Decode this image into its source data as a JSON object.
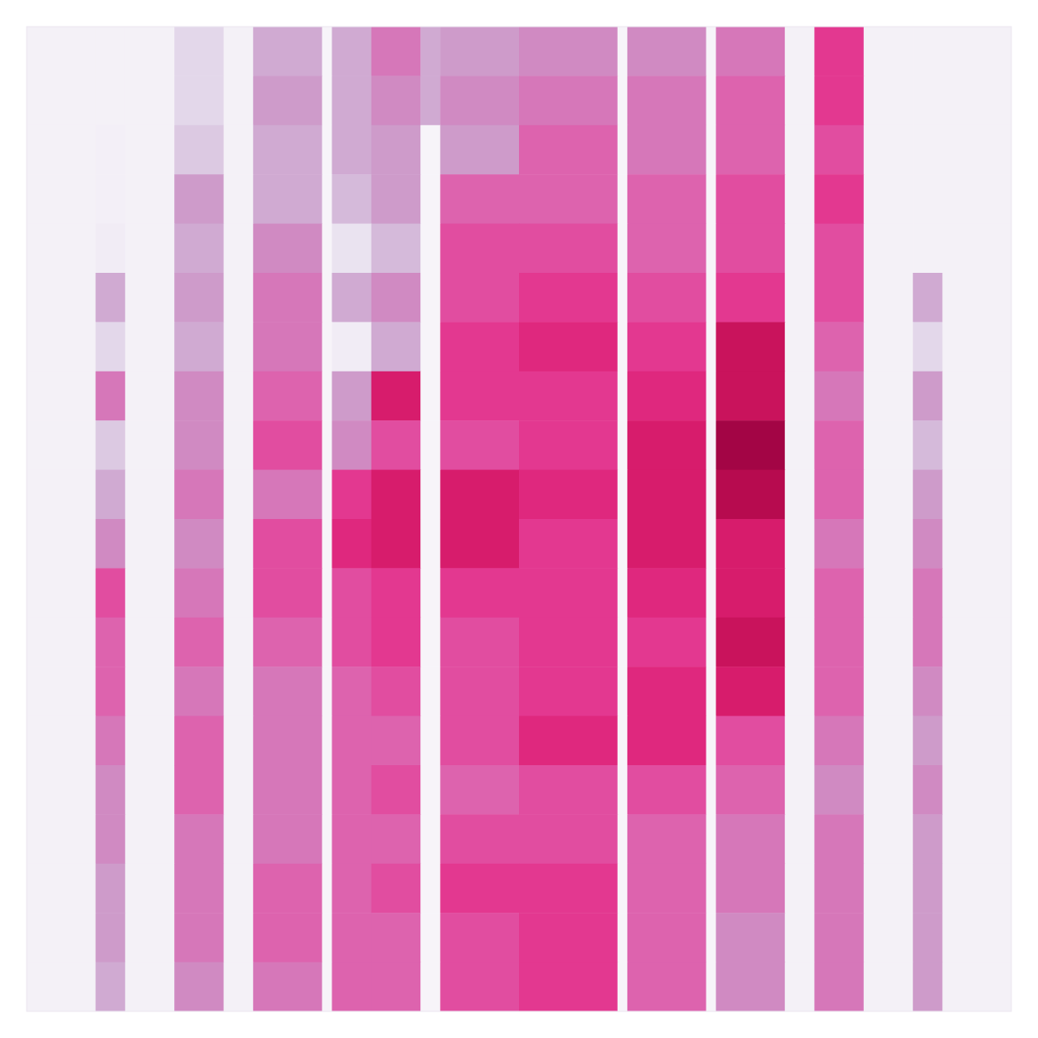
{
  "chart_data": {
    "type": "heatmap",
    "color": "PuRd",
    "tick_labels": false,
    "xlim": [
      0,
      100
    ],
    "ylim": [
      0,
      100
    ],
    "color_range": [
      0,
      1
    ],
    "x_edges": [
      0,
      7,
      10,
      15,
      20,
      23,
      30,
      31,
      35,
      40,
      42,
      50,
      60,
      61,
      69,
      70,
      77,
      80,
      85,
      90,
      93,
      100
    ],
    "y_edges": [
      0,
      5,
      10,
      15,
      20,
      25,
      30,
      35,
      40,
      45,
      50,
      55,
      60,
      65,
      70,
      75,
      80,
      85,
      90,
      95,
      100
    ],
    "cells": [
      [
        0.02,
        0.02,
        0.02,
        0.15,
        0.02,
        0.3,
        0,
        0.3,
        0.45,
        0.3,
        0.35,
        0.4,
        0,
        0.4,
        0,
        0.45,
        0.02,
        0.6,
        0.02,
        0.02,
        0.02
      ],
      [
        0.02,
        0.02,
        0.02,
        0.15,
        0.02,
        0.35,
        0,
        0.3,
        0.4,
        0.3,
        0.4,
        0.45,
        0,
        0.45,
        0,
        0.5,
        0.02,
        0.6,
        0.02,
        0.02,
        0.02
      ],
      [
        0.02,
        0.03,
        0.02,
        0.2,
        0.02,
        0.3,
        0,
        0.3,
        0.35,
        0,
        0.35,
        0.5,
        0,
        0.45,
        0,
        0.5,
        0.02,
        0.55,
        0.02,
        0.02,
        0.02
      ],
      [
        0.02,
        0.03,
        0.02,
        0.35,
        0.02,
        0.3,
        0,
        0.25,
        0.35,
        0,
        0.5,
        0.5,
        0,
        0.5,
        0,
        0.55,
        0.02,
        0.6,
        0.02,
        0.02,
        0.02
      ],
      [
        0.02,
        0.05,
        0.02,
        0.3,
        0.02,
        0.4,
        0,
        0.1,
        0.25,
        0,
        0.55,
        0.55,
        0,
        0.5,
        0,
        0.55,
        0.02,
        0.55,
        0.02,
        0.02,
        0.02
      ],
      [
        0.02,
        0.3,
        0.02,
        0.35,
        0.02,
        0.45,
        0,
        0.3,
        0.4,
        0,
        0.55,
        0.6,
        0,
        0.55,
        0,
        0.6,
        0.02,
        0.55,
        0.02,
        0.3,
        0.02
      ],
      [
        0.02,
        0.15,
        0.02,
        0.3,
        0.02,
        0.45,
        0,
        0.05,
        0.3,
        0,
        0.6,
        0.65,
        0,
        0.6,
        0,
        0.75,
        0.02,
        0.5,
        0.02,
        0.15,
        0.02
      ],
      [
        0.02,
        0.45,
        0.02,
        0.4,
        0.02,
        0.5,
        0,
        0.35,
        0.7,
        0,
        0.6,
        0.6,
        0,
        0.65,
        0,
        0.75,
        0.02,
        0.45,
        0.02,
        0.35,
        0.02
      ],
      [
        0.02,
        0.2,
        0.02,
        0.4,
        0.02,
        0.55,
        0,
        0.4,
        0.55,
        0,
        0.55,
        0.6,
        0,
        0.7,
        0,
        0.85,
        0.02,
        0.5,
        0.02,
        0.25,
        0.02
      ],
      [
        0.02,
        0.3,
        0.02,
        0.45,
        0.02,
        0.45,
        0,
        0.6,
        0.7,
        0,
        0.7,
        0.65,
        0,
        0.7,
        0,
        0.8,
        0.02,
        0.5,
        0.02,
        0.35,
        0.02
      ],
      [
        0.02,
        0.4,
        0.02,
        0.4,
        0.02,
        0.55,
        0,
        0.65,
        0.7,
        0,
        0.7,
        0.6,
        0,
        0.7,
        0,
        0.7,
        0.02,
        0.45,
        0.02,
        0.4,
        0.02
      ],
      [
        0.02,
        0.55,
        0.02,
        0.45,
        0.02,
        0.55,
        0,
        0.55,
        0.6,
        0,
        0.6,
        0.6,
        0,
        0.65,
        0,
        0.7,
        0.02,
        0.5,
        0.02,
        0.45,
        0.02
      ],
      [
        0.02,
        0.5,
        0.02,
        0.5,
        0.02,
        0.5,
        0,
        0.55,
        0.6,
        0,
        0.55,
        0.6,
        0,
        0.6,
        0,
        0.75,
        0.02,
        0.5,
        0.02,
        0.45,
        0.02
      ],
      [
        0.02,
        0.5,
        0.02,
        0.45,
        0.02,
        0.45,
        0,
        0.5,
        0.55,
        0,
        0.55,
        0.6,
        0,
        0.65,
        0,
        0.7,
        0.02,
        0.5,
        0.02,
        0.4,
        0.02
      ],
      [
        0.02,
        0.45,
        0.02,
        0.5,
        0.02,
        0.45,
        0,
        0.5,
        0.5,
        0,
        0.55,
        0.65,
        0,
        0.65,
        0,
        0.55,
        0.02,
        0.45,
        0.02,
        0.35,
        0.02
      ],
      [
        0.02,
        0.4,
        0.02,
        0.5,
        0.02,
        0.45,
        0,
        0.5,
        0.55,
        0,
        0.5,
        0.55,
        0,
        0.55,
        0,
        0.5,
        0.02,
        0.4,
        0.02,
        0.4,
        0.02
      ],
      [
        0.02,
        0.4,
        0.02,
        0.45,
        0.02,
        0.45,
        0,
        0.5,
        0.5,
        0,
        0.55,
        0.55,
        0,
        0.5,
        0,
        0.45,
        0.02,
        0.45,
        0.02,
        0.35,
        0.02
      ],
      [
        0.02,
        0.35,
        0.02,
        0.45,
        0.02,
        0.5,
        0,
        0.5,
        0.55,
        0,
        0.6,
        0.6,
        0,
        0.5,
        0,
        0.45,
        0.02,
        0.45,
        0.02,
        0.35,
        0.02
      ],
      [
        0.02,
        0.35,
        0.02,
        0.45,
        0.02,
        0.5,
        0,
        0.5,
        0.5,
        0,
        0.55,
        0.6,
        0,
        0.5,
        0,
        0.4,
        0.02,
        0.45,
        0.02,
        0.35,
        0.02
      ],
      [
        0.02,
        0.3,
        0.02,
        0.4,
        0.02,
        0.45,
        0,
        0.5,
        0.5,
        0,
        0.55,
        0.6,
        0,
        0.5,
        0,
        0.4,
        0.02,
        0.45,
        0.02,
        0.35,
        0.02
      ]
    ]
  }
}
